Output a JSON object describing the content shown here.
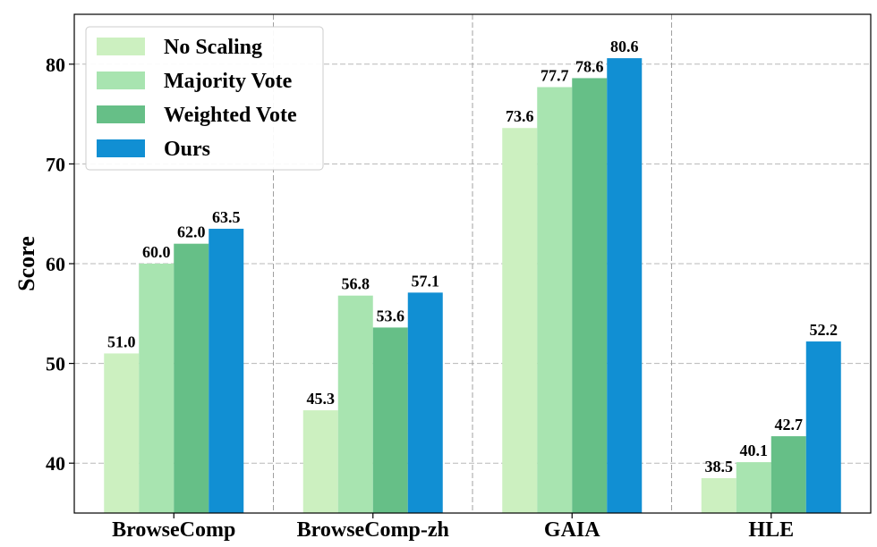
{
  "chart_data": {
    "type": "bar",
    "title": "",
    "xlabel": "",
    "ylabel": "Score",
    "ylim": [
      35,
      85
    ],
    "yticks": [
      40,
      50,
      60,
      70,
      80
    ],
    "categories": [
      "BrowseComp",
      "BrowseComp-zh",
      "GAIA",
      "HLE"
    ],
    "series": [
      {
        "name": "No Scaling",
        "color": "#ccf0c0",
        "values": [
          51.0,
          45.3,
          73.6,
          38.5
        ]
      },
      {
        "name": "Majority Vote",
        "color": "#a8e4b0",
        "values": [
          60.0,
          56.8,
          77.7,
          40.1
        ]
      },
      {
        "name": "Weighted Vote",
        "color": "#66bf87",
        "values": [
          62.0,
          53.6,
          78.6,
          42.7
        ]
      },
      {
        "name": "Ours",
        "color": "#118fd3",
        "values": [
          63.5,
          57.1,
          80.6,
          52.2
        ]
      }
    ],
    "legend_position": "top-left",
    "grid": "dashed"
  }
}
